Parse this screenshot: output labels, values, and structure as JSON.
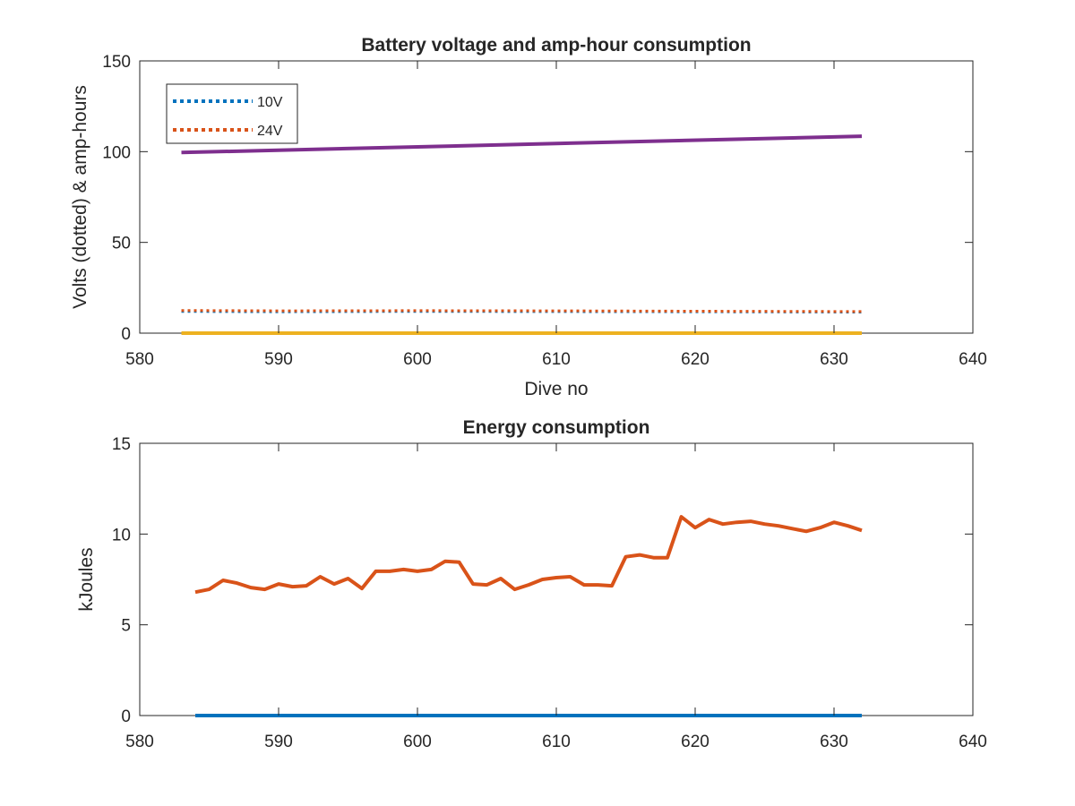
{
  "chart_data": [
    {
      "type": "line",
      "title": "Battery voltage and amp-hour consumption",
      "xlabel": "Dive no",
      "ylabel": "Volts (dotted) & amp-hours",
      "xlim": [
        580,
        640
      ],
      "ylim": [
        0,
        150
      ],
      "xticks": [
        "580",
        "590",
        "600",
        "610",
        "620",
        "630",
        "640"
      ],
      "yticks": [
        "0",
        "50",
        "100",
        "150"
      ],
      "grid": false,
      "legend": {
        "placement": "top-left",
        "entries": [
          {
            "label": "10V",
            "color": "#0072BD",
            "style": "dotted"
          },
          {
            "label": "24V",
            "color": "#D95319",
            "style": "dotted"
          }
        ]
      },
      "series": [
        {
          "name": "10V",
          "color": "#0072BD",
          "style": "dotted",
          "x": [
            583,
            590,
            600,
            610,
            620,
            632
          ],
          "y": [
            12,
            11.8,
            12,
            11.9,
            11.8,
            11.6
          ]
        },
        {
          "name": "24V",
          "color": "#D95319",
          "style": "dotted",
          "x": [
            583,
            590,
            600,
            610,
            620,
            632
          ],
          "y": [
            12.5,
            12.3,
            12.4,
            12.3,
            12.1,
            11.9
          ]
        },
        {
          "color": "#7E2F8E",
          "style": "solid",
          "x": [
            583,
            632
          ],
          "y": [
            99.5,
            108.5
          ]
        },
        {
          "color": "#EDB120",
          "style": "solid",
          "x": [
            583,
            632
          ],
          "y": [
            0,
            0
          ]
        }
      ]
    },
    {
      "type": "line",
      "title": "Energy consumption",
      "xlabel": "",
      "ylabel": "kJoules",
      "xlim": [
        580,
        640
      ],
      "ylim": [
        0,
        15
      ],
      "xticks": [
        "580",
        "590",
        "600",
        "610",
        "620",
        "630",
        "640"
      ],
      "yticks": [
        "0",
        "5",
        "10",
        "15"
      ],
      "grid": false,
      "series": [
        {
          "color": "#0072BD",
          "style": "solid",
          "x": [
            584,
            632
          ],
          "y": [
            0,
            0
          ]
        },
        {
          "color": "#D95319",
          "style": "solid",
          "x": [
            584,
            585,
            586,
            587,
            588,
            589,
            590,
            591,
            592,
            593,
            594,
            595,
            596,
            597,
            598,
            599,
            600,
            601,
            602,
            603,
            604,
            605,
            606,
            607,
            608,
            609,
            610,
            611,
            612,
            613,
            614,
            615,
            616,
            617,
            618,
            619,
            620,
            621,
            622,
            623,
            624,
            625,
            626,
            627,
            628,
            629,
            630,
            631,
            632
          ],
          "y": [
            6.8,
            6.95,
            7.45,
            7.3,
            7.05,
            6.95,
            7.25,
            7.1,
            7.15,
            7.65,
            7.25,
            7.55,
            7.0,
            7.95,
            7.95,
            8.05,
            7.95,
            8.05,
            8.5,
            8.45,
            7.25,
            7.2,
            7.55,
            6.95,
            7.2,
            7.5,
            7.6,
            7.65,
            7.2,
            7.2,
            7.15,
            8.75,
            8.85,
            8.7,
            8.7,
            10.95,
            10.35,
            10.8,
            10.55,
            10.65,
            10.7,
            10.55,
            10.45,
            10.3,
            10.15,
            10.35,
            10.65,
            10.45,
            10.2
          ]
        }
      ]
    }
  ]
}
